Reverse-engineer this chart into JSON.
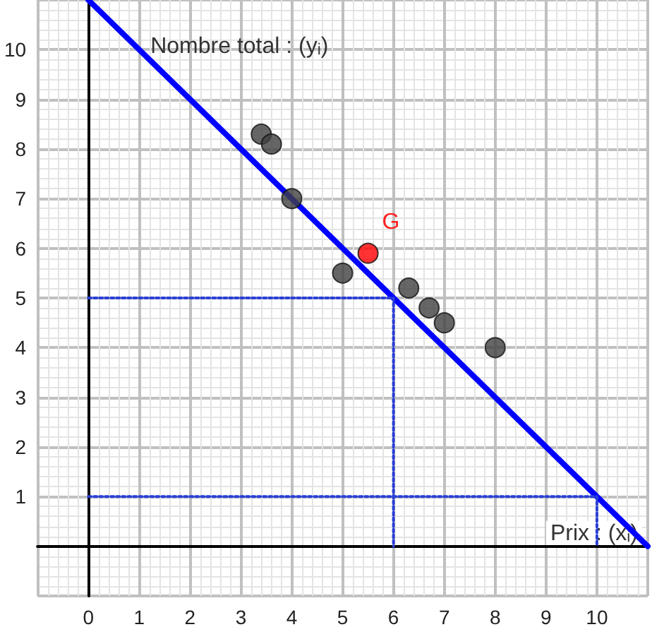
{
  "chart_data": {
    "type": "scatter",
    "xlabel": "Prix : (xᵢ)",
    "ylabel": "Nombre total : (yᵢ)",
    "xlim": [
      -1,
      11
    ],
    "ylim": [
      -1,
      11
    ],
    "xticks": [
      0,
      1,
      2,
      3,
      4,
      5,
      6,
      7,
      8,
      9,
      10
    ],
    "yticks": [
      1,
      2,
      3,
      4,
      5,
      6,
      7,
      8,
      9,
      10
    ],
    "grid": true,
    "marker": "circle",
    "series": [
      {
        "color": "#404040",
        "x": [
          3.4,
          3.6,
          4,
          5,
          6.3,
          6.7,
          7,
          8
        ],
        "values": [
          8.3,
          8.1,
          7,
          5.5,
          5.2,
          4.8,
          4.5,
          4
        ]
      },
      {
        "color": "#ff0000",
        "x": [
          5.5
        ],
        "values": [
          5.9
        ]
      },
      {
        "type": "line",
        "color": "#0000ff",
        "marker": "none",
        "x": [
          0,
          11
        ],
        "values": [
          11,
          0
        ]
      },
      {
        "type": "line",
        "color": "#2a3fd6",
        "marker": "none",
        "line_style": "dotted",
        "x": [
          0,
          6,
          6
        ],
        "values": [
          5,
          5,
          0
        ]
      },
      {
        "type": "line",
        "color": "#2a3fd6",
        "marker": "none",
        "line_style": "dotted",
        "x": [
          0,
          10,
          10
        ],
        "values": [
          1,
          1,
          0
        ]
      }
    ],
    "annotations": [
      {
        "text": "G",
        "x": 5.5,
        "y": 5.9
      }
    ]
  }
}
